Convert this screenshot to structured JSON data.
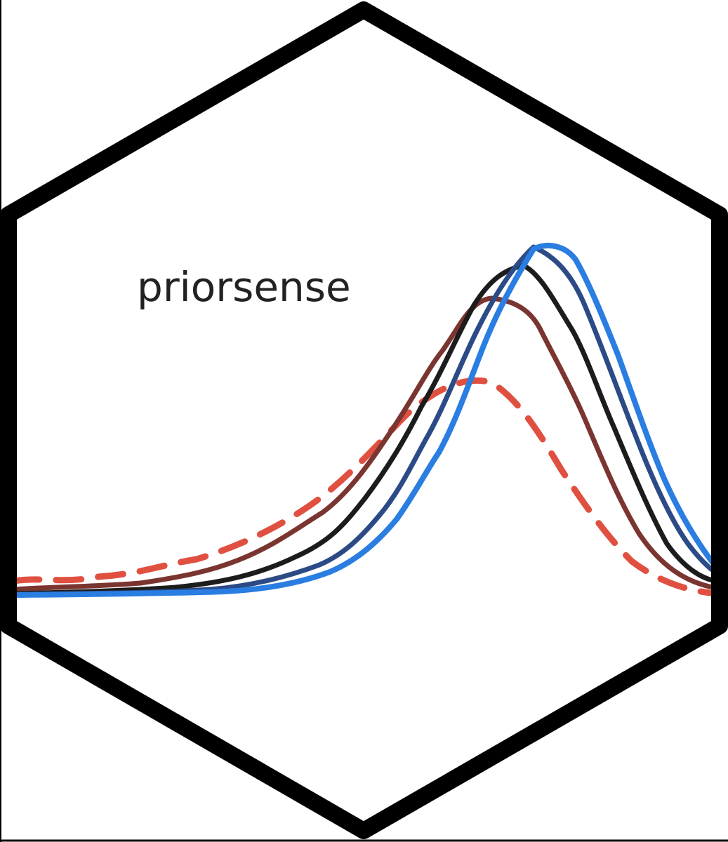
{
  "logo": {
    "name": "priorsense",
    "colors": {
      "hex_border": "#000000",
      "background": "#ffffff",
      "text": "#222222"
    }
  },
  "curves": [
    {
      "name": "",
      "color": "#e05040",
      "style": "dashed"
    },
    {
      "name": "",
      "color": "#7a3530",
      "style": "solid"
    },
    {
      "name": "",
      "color": "#1c1c1c",
      "style": "solid"
    },
    {
      "name": "",
      "color": "#2b4a86",
      "style": "solid"
    },
    {
      "name": "",
      "color": "#2a7de1",
      "style": "solid"
    }
  ]
}
